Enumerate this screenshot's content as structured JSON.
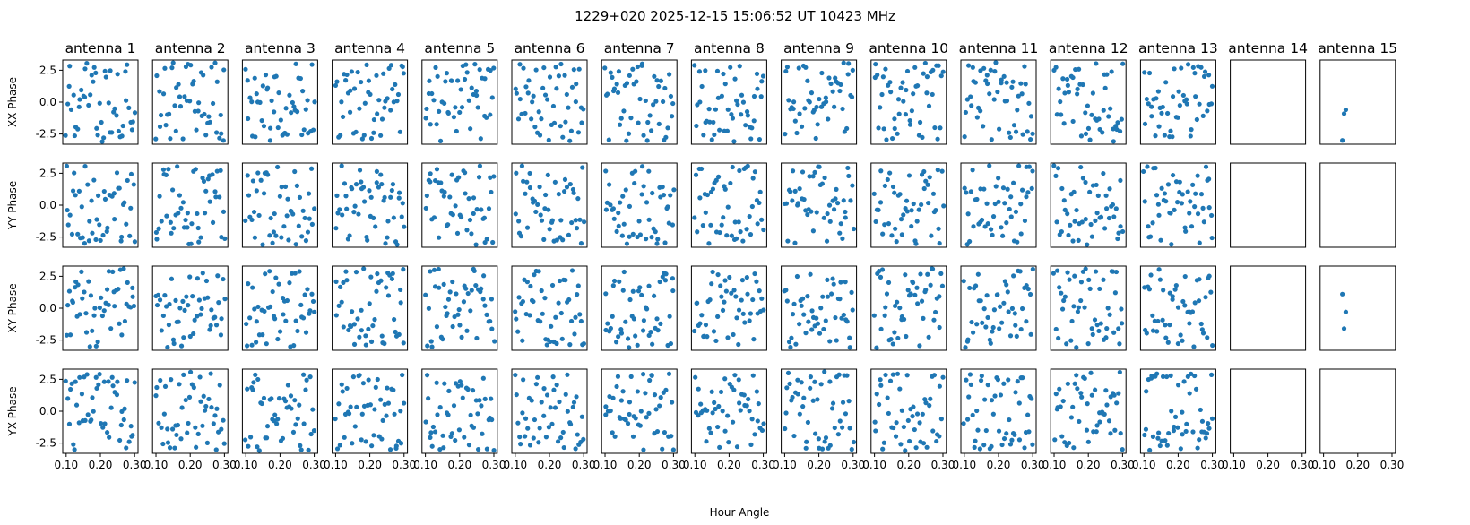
{
  "chart_data": {
    "type": "scatter",
    "title": "1229+020  2025-12-15 15:06:52 UT  10423 MHz",
    "xlabel": "Hour Angle",
    "columns": [
      "antenna 1",
      "antenna 2",
      "antenna 3",
      "antenna 4",
      "antenna 5",
      "antenna 6",
      "antenna 7",
      "antenna 8",
      "antenna 9",
      "antenna 10",
      "antenna 11",
      "antenna 12",
      "antenna 13",
      "antenna 14",
      "antenna 15"
    ],
    "rows": [
      "XX Phase",
      "YY Phase",
      "XY Phase",
      "YX Phase"
    ],
    "xlim": [
      0.09,
      0.31
    ],
    "ylim": [
      -3.3,
      3.3
    ],
    "xticks": [
      0.1,
      0.2,
      0.3
    ],
    "xtick_labels": [
      "0.10",
      "0.20",
      "0.30"
    ],
    "yticks": [
      2.5,
      0.0,
      -2.5
    ],
    "ytick_labels": [
      "2.5",
      "0.0",
      "-2.5"
    ],
    "points_per_panel": 50,
    "x_range": [
      0.1,
      0.3
    ],
    "marker_color": "#1f77b4",
    "partial_panels": {
      "antenna 14": {
        "XX Phase": [],
        "YY Phase": [],
        "XY Phase": [],
        "YX Phase": []
      },
      "antenna 15": {
        "XX Phase": [
          [
            0.155,
            -3.0
          ],
          [
            0.16,
            -0.9
          ],
          [
            0.165,
            -0.6
          ]
        ],
        "YY Phase": [],
        "XY Phase": [
          [
            0.155,
            1.1
          ],
          [
            0.16,
            -1.6
          ],
          [
            0.165,
            -0.3
          ]
        ],
        "YX Phase": []
      }
    },
    "grid": false,
    "legend": "none"
  }
}
